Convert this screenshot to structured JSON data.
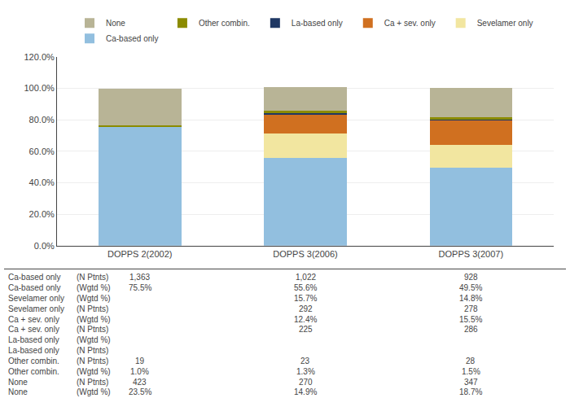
{
  "chart_data": {
    "type": "bar",
    "stacked": true,
    "categories": [
      "DOPPS 2(2002)",
      "DOPPS 3(2006)",
      "DOPPS 3(2007)"
    ],
    "series": [
      {
        "name": "Ca-based only",
        "color": "#92BFDF",
        "values": [
          75.5,
          55.6,
          49.5
        ]
      },
      {
        "name": "Sevelamer only",
        "color": "#F2E6A0",
        "values": [
          0.0,
          15.7,
          14.8
        ]
      },
      {
        "name": "Ca + sev. only",
        "color": "#D07020",
        "values": [
          0.0,
          12.4,
          15.5
        ]
      },
      {
        "name": "La-based only",
        "color": "#1F3864",
        "values": [
          0.0,
          0.7,
          0.5
        ]
      },
      {
        "name": "Other combin.",
        "color": "#8B8B00",
        "values": [
          1.0,
          1.3,
          1.5
        ]
      },
      {
        "name": "None",
        "color": "#B8B496",
        "values": [
          23.5,
          14.9,
          18.7
        ]
      }
    ],
    "ylim": [
      0,
      120
    ],
    "yticks": [
      {
        "value": 0,
        "label": "0.0%"
      },
      {
        "value": 20,
        "label": "20.0%"
      },
      {
        "value": 40,
        "label": "40.0%"
      },
      {
        "value": 60,
        "label": "60.0%"
      },
      {
        "value": 80,
        "label": "80.0%"
      },
      {
        "value": 100,
        "label": "100.0%"
      },
      {
        "value": 120,
        "label": "120.0%"
      }
    ],
    "grid": true,
    "legend": "top",
    "table_rows": [
      {
        "label": "Ca-based only",
        "sublabel": "(N Ptnts)",
        "values": [
          "1,363",
          "1,022",
          "928"
        ]
      },
      {
        "label": "Ca-based only",
        "sublabel": "(Wgtd %)",
        "values": [
          "75.5%",
          "55.6%",
          "49.5%"
        ]
      },
      {
        "label": "Sevelamer only",
        "sublabel": "(Wgtd %)",
        "values": [
          null,
          "15.7%",
          "14.8%"
        ]
      },
      {
        "label": "Sevelamer only",
        "sublabel": "(N Ptnts)",
        "values": [
          null,
          "292",
          "278"
        ]
      },
      {
        "label": "Ca + sev. only",
        "sublabel": "(Wgtd %)",
        "values": [
          null,
          "12.4%",
          "15.5%"
        ]
      },
      {
        "label": "Ca + sev. only",
        "sublabel": "(N Ptnts)",
        "values": [
          null,
          "225",
          "286"
        ]
      },
      {
        "label": "La-based only",
        "sublabel": "(Wgtd %)",
        "values": [
          null,
          null,
          null
        ]
      },
      {
        "label": "La-based only",
        "sublabel": "(N Ptnts)",
        "values": [
          null,
          null,
          null
        ]
      },
      {
        "label": "Other combin.",
        "sublabel": "(N Ptnts)",
        "values": [
          "19",
          "23",
          "28"
        ]
      },
      {
        "label": "Other combin.",
        "sublabel": "(Wgtd %)",
        "values": [
          "1.0%",
          "1.3%",
          "1.5%"
        ]
      },
      {
        "label": "None",
        "sublabel": "(N Ptnts)",
        "values": [
          "423",
          "270",
          "347"
        ]
      },
      {
        "label": "None",
        "sublabel": "(Wgtd %)",
        "values": [
          "23.5%",
          "14.9%",
          "18.7%"
        ]
      }
    ]
  }
}
